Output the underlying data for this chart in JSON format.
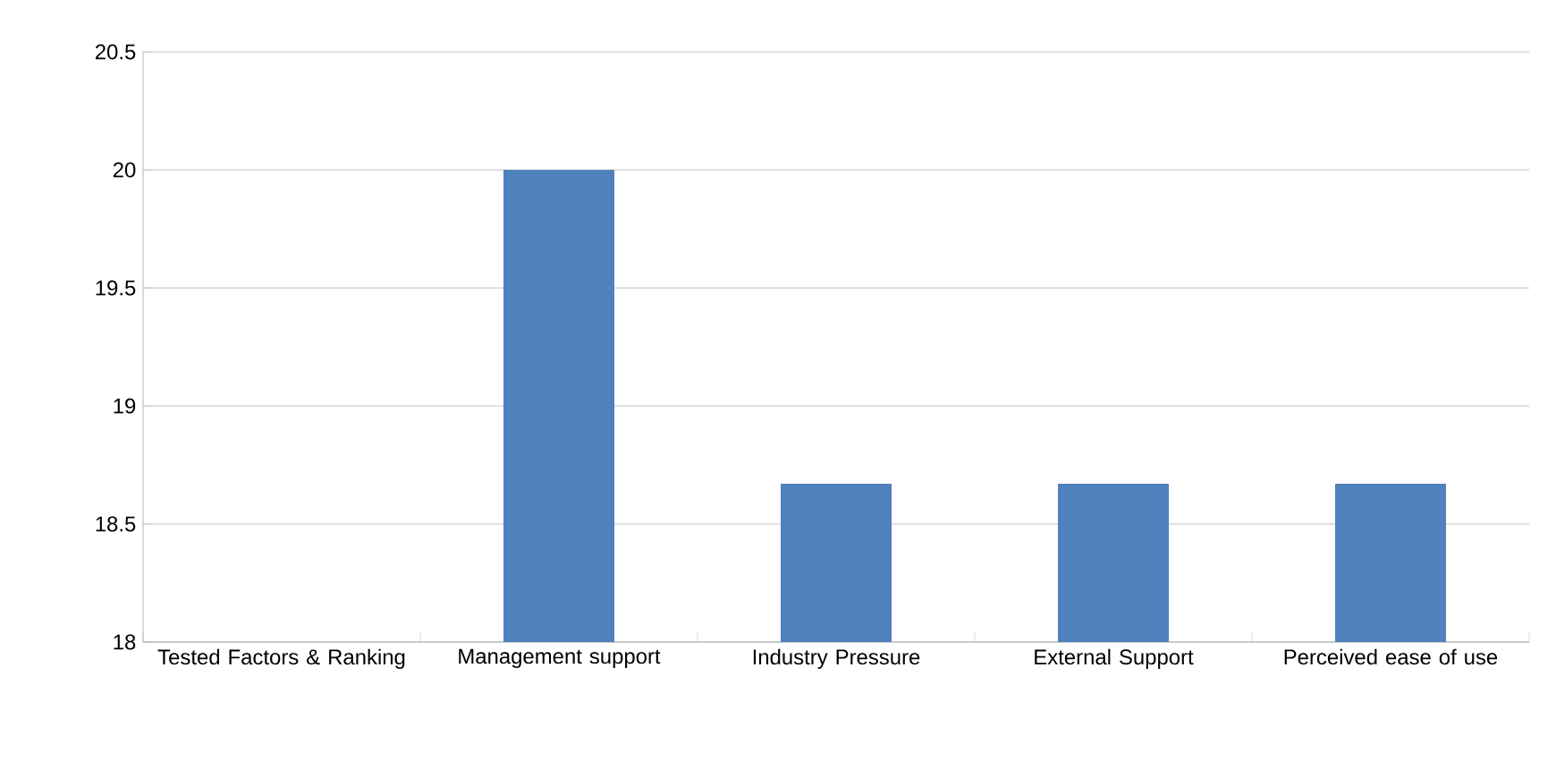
{
  "chart_data": {
    "type": "bar",
    "categories": [
      "Tested Factors & Ranking",
      "Management support",
      "Industry Pressure",
      "External Support",
      "Perceived ease of use"
    ],
    "values": [
      null,
      20,
      18.67,
      18.67,
      18.67
    ],
    "color": "#4f81bd",
    "ylim": [
      18,
      20.5
    ],
    "yticks": [
      18,
      18.5,
      19,
      19.5,
      20,
      20.5
    ],
    "grid": "y"
  }
}
